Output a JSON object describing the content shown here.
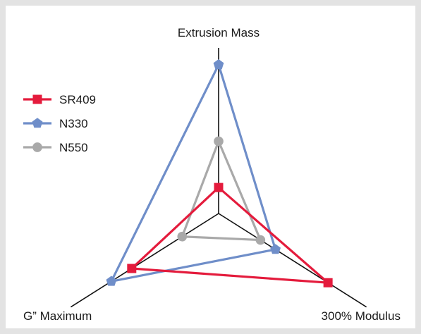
{
  "chart_data": {
    "type": "radar",
    "axes": [
      "Extrusion Mass",
      "G” Maximum",
      "300% Modulus"
    ],
    "range": [
      0,
      1
    ],
    "series": [
      {
        "name": "SR409",
        "color": "#e41b3c",
        "marker": "square",
        "values": [
          0.18,
          0.81,
          1.02
        ]
      },
      {
        "name": "N330",
        "color": "#6f8ec9",
        "marker": "pentagon",
        "values": [
          1.03,
          1.0,
          0.53
        ]
      },
      {
        "name": "N550",
        "color": "#a9a9a9",
        "marker": "circle",
        "values": [
          0.5,
          0.34,
          0.39
        ]
      }
    ],
    "legend_position": "left"
  }
}
